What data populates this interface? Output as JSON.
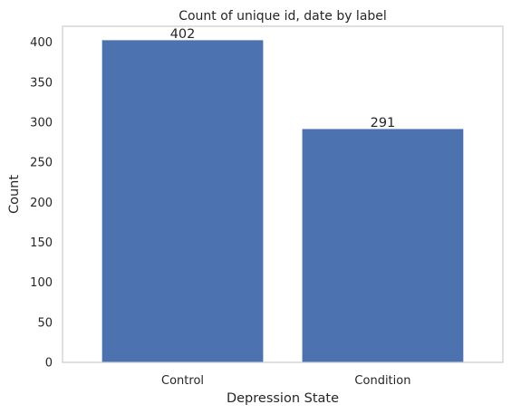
{
  "chart_data": {
    "type": "bar",
    "title": "Count of unique id, date by label",
    "xlabel": "Depression State",
    "ylabel": "Count",
    "categories": [
      "Control",
      "Condition"
    ],
    "values": [
      402,
      291
    ],
    "data_labels": [
      "402",
      "291"
    ],
    "ylim": [
      0,
      420
    ],
    "yticks": [
      0,
      50,
      100,
      150,
      200,
      250,
      300,
      350,
      400
    ],
    "grid": false,
    "legend": "none",
    "colors": {
      "bar": "#4c72b0",
      "bar_edge": "#4a6fac",
      "frame": "#cccccc",
      "text": "#262626",
      "background": "#ffffff"
    }
  }
}
